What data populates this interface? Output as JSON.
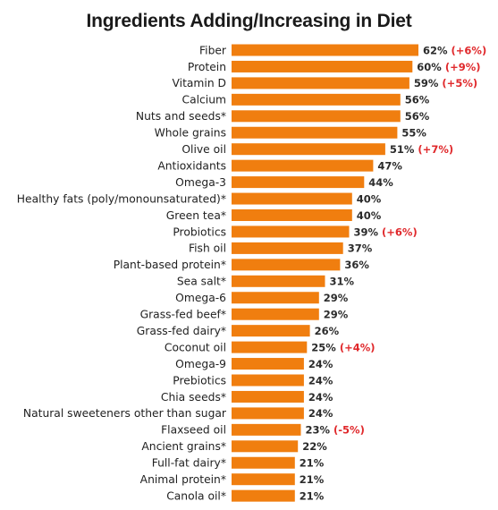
{
  "title": "Ingredients Adding/Increasing in Diet",
  "colors": {
    "bar": "#F07E0F",
    "label": "#1f1f1f",
    "value": "#2b2b2b",
    "change": "#E0282B"
  },
  "chart_data": {
    "type": "bar",
    "orientation": "horizontal",
    "title": "Ingredients Adding/Increasing in Diet",
    "xlabel": "",
    "ylabel": "",
    "xlim": [
      0,
      62
    ],
    "grid": false,
    "legend": "none",
    "categories": [
      "Fiber",
      "Protein",
      "Vitamin D",
      "Calcium",
      "Nuts and seeds*",
      "Whole grains",
      "Olive oil",
      "Antioxidants",
      "Omega-3",
      "Healthy fats (poly/monounsaturated)*",
      "Green tea*",
      "Probiotics",
      "Fish oil",
      "Plant-based protein*",
      "Sea salt*",
      "Omega-6",
      "Grass-fed beef*",
      "Grass-fed dairy*",
      "Coconut oil",
      "Omega-9",
      "Prebiotics",
      "Chia seeds*",
      "Natural sweeteners other than sugar",
      "Flaxseed oil",
      "Ancient grains*",
      "Full-fat dairy*",
      "Animal protein*",
      "Canola oil*"
    ],
    "values": [
      62,
      60,
      59,
      56,
      56,
      55,
      51,
      47,
      44,
      40,
      40,
      39,
      37,
      36,
      31,
      29,
      29,
      26,
      25,
      24,
      24,
      24,
      24,
      23,
      22,
      21,
      21,
      21
    ],
    "value_labels": [
      "62%",
      "60%",
      "59%",
      "56%",
      "56%",
      "55%",
      "51%",
      "47%",
      "44%",
      "40%",
      "40%",
      "39%",
      "37%",
      "36%",
      "31%",
      "29%",
      "29%",
      "26%",
      "25%",
      "24%",
      "24%",
      "24%",
      "24%",
      "23%",
      "22%",
      "21%",
      "21%",
      "21%"
    ],
    "changes": [
      "(+6%)",
      "(+9%)",
      "(+5%)",
      "",
      "",
      "",
      "(+7%)",
      "",
      "",
      "",
      "",
      "(+6%)",
      "",
      "",
      "",
      "",
      "",
      "",
      "(+4%)",
      "",
      "",
      "",
      "",
      "(-5%)",
      "",
      "",
      "",
      ""
    ]
  }
}
